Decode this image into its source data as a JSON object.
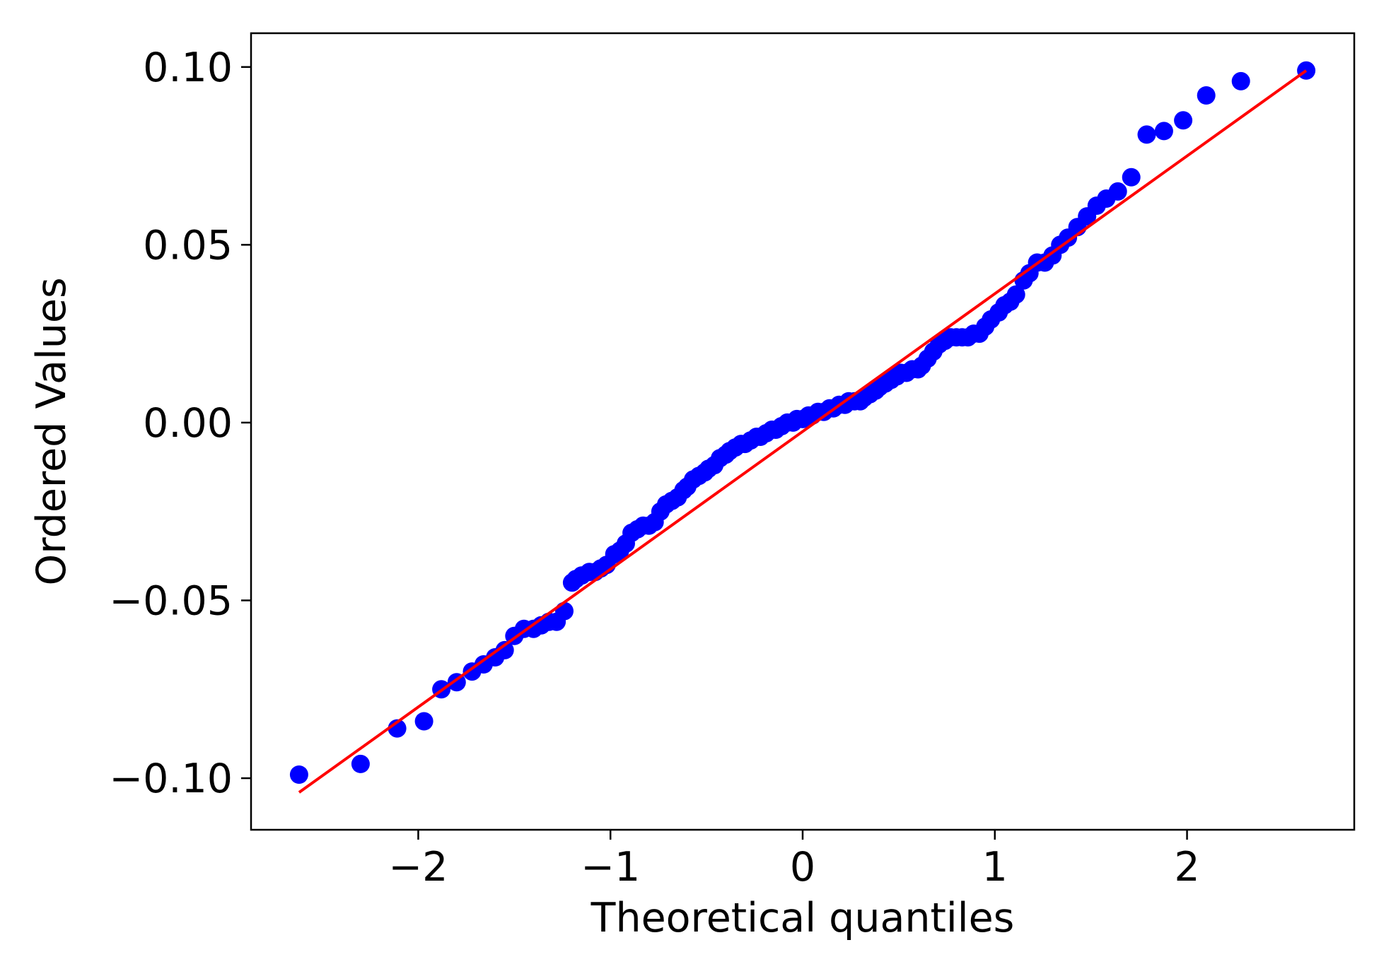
{
  "chart_data": {
    "type": "scatter",
    "title": "",
    "xlabel": "Theoretical quantiles",
    "ylabel": "Ordered Values",
    "xlim": [
      -2.87,
      2.87
    ],
    "ylim": [
      -0.1145,
      0.1095
    ],
    "grid": false,
    "x_ticks": [
      {
        "value": -2,
        "label": "−2"
      },
      {
        "value": -1,
        "label": "−1"
      },
      {
        "value": 0,
        "label": "0"
      },
      {
        "value": 1,
        "label": "1"
      },
      {
        "value": 2,
        "label": "2"
      }
    ],
    "y_ticks": [
      {
        "value": -0.1,
        "label": "−0.10"
      },
      {
        "value": -0.05,
        "label": "−0.05"
      },
      {
        "value": 0.0,
        "label": "0.00"
      },
      {
        "value": 0.05,
        "label": "0.05"
      },
      {
        "value": 0.1,
        "label": "0.10"
      }
    ],
    "points_color": "#0000ff",
    "fit_line": {
      "color": "#ff0000",
      "x": [
        -2.62,
        2.62
      ],
      "y": [
        -0.104,
        0.099
      ]
    },
    "points": {
      "x": [
        -2.62,
        -2.3,
        -2.11,
        -1.97,
        -1.88,
        -1.8,
        -1.72,
        -1.66,
        -1.6,
        -1.55,
        -1.5,
        -1.45,
        -1.4,
        -1.36,
        -1.32,
        -1.28,
        -1.24,
        -1.2,
        -1.18,
        -1.15,
        -1.11,
        -1.08,
        -1.05,
        -1.02,
        -0.98,
        -0.95,
        -0.92,
        -0.89,
        -0.86,
        -0.83,
        -0.8,
        -0.77,
        -0.74,
        -0.71,
        -0.68,
        -0.65,
        -0.62,
        -0.6,
        -0.57,
        -0.54,
        -0.51,
        -0.49,
        -0.46,
        -0.43,
        -0.4,
        -0.38,
        -0.35,
        -0.32,
        -0.3,
        -0.27,
        -0.24,
        -0.22,
        -0.19,
        -0.16,
        -0.14,
        -0.11,
        -0.08,
        -0.05,
        -0.03,
        0.0,
        0.03,
        0.05,
        0.08,
        0.11,
        0.14,
        0.16,
        0.19,
        0.22,
        0.24,
        0.27,
        0.3,
        0.32,
        0.35,
        0.38,
        0.4,
        0.43,
        0.46,
        0.49,
        0.51,
        0.54,
        0.57,
        0.6,
        0.62,
        0.65,
        0.68,
        0.71,
        0.74,
        0.77,
        0.8,
        0.83,
        0.86,
        0.89,
        0.92,
        0.95,
        0.98,
        1.02,
        1.05,
        1.08,
        1.11,
        1.15,
        1.18,
        1.22,
        1.26,
        1.3,
        1.34,
        1.38,
        1.43,
        1.48,
        1.53,
        1.58,
        1.64,
        1.71,
        1.79,
        1.88,
        1.98,
        2.1,
        2.28,
        2.62
      ],
      "y": [
        -0.099,
        -0.096,
        -0.086,
        -0.084,
        -0.075,
        -0.073,
        -0.07,
        -0.068,
        -0.066,
        -0.064,
        -0.06,
        -0.058,
        -0.058,
        -0.057,
        -0.056,
        -0.056,
        -0.053,
        -0.045,
        -0.044,
        -0.043,
        -0.042,
        -0.042,
        -0.041,
        -0.04,
        -0.037,
        -0.036,
        -0.034,
        -0.031,
        -0.03,
        -0.029,
        -0.029,
        -0.028,
        -0.025,
        -0.023,
        -0.022,
        -0.021,
        -0.019,
        -0.018,
        -0.016,
        -0.015,
        -0.014,
        -0.013,
        -0.012,
        -0.01,
        -0.009,
        -0.008,
        -0.007,
        -0.006,
        -0.006,
        -0.005,
        -0.004,
        -0.004,
        -0.003,
        -0.002,
        -0.002,
        -0.001,
        0.0,
        0.0,
        0.001,
        0.001,
        0.002,
        0.002,
        0.003,
        0.003,
        0.004,
        0.004,
        0.005,
        0.005,
        0.006,
        0.006,
        0.006,
        0.007,
        0.008,
        0.009,
        0.01,
        0.011,
        0.012,
        0.013,
        0.014,
        0.014,
        0.015,
        0.015,
        0.016,
        0.018,
        0.02,
        0.022,
        0.023,
        0.024,
        0.024,
        0.024,
        0.024,
        0.025,
        0.025,
        0.027,
        0.029,
        0.031,
        0.033,
        0.034,
        0.036,
        0.04,
        0.042,
        0.045,
        0.045,
        0.047,
        0.05,
        0.052,
        0.055,
        0.058,
        0.061,
        0.063,
        0.065,
        0.069,
        0.081,
        0.082,
        0.085,
        0.092,
        0.096,
        0.099
      ]
    }
  }
}
